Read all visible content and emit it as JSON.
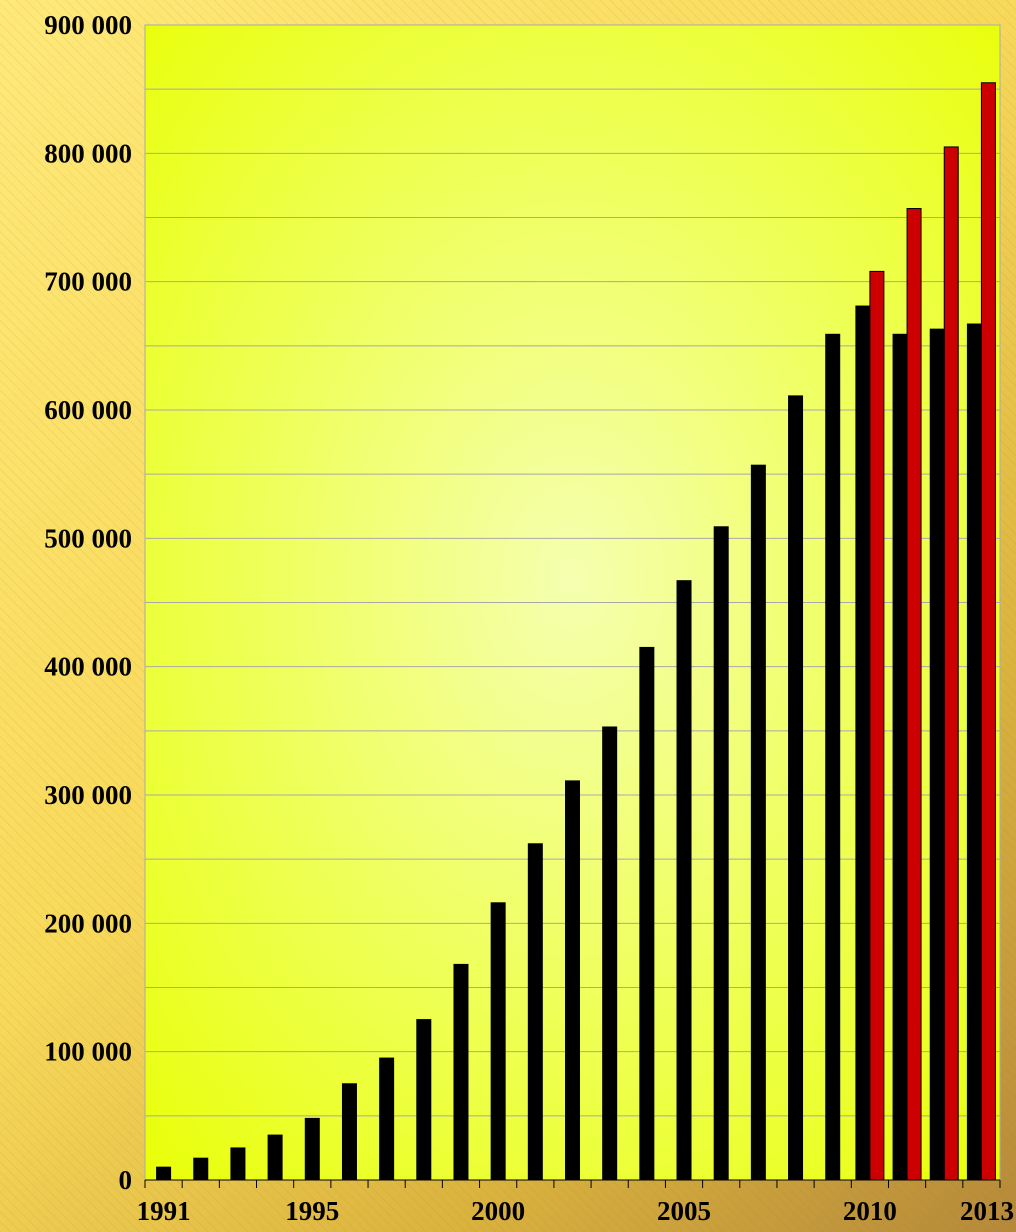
{
  "chart_data": {
    "type": "bar",
    "title": "",
    "xlabel": "",
    "ylabel": "",
    "categories": [
      "1991",
      "1992",
      "1993",
      "1994",
      "1995",
      "1996",
      "1997",
      "1998",
      "1999",
      "2000",
      "2001",
      "2002",
      "2003",
      "2004",
      "2005",
      "2006",
      "2007",
      "2008",
      "2009",
      "2010",
      "2011",
      "2012",
      "2013"
    ],
    "x_tick_labels": [
      "1991",
      "1995",
      "2000",
      "2005",
      "2010",
      "2013"
    ],
    "y_tick_labels": [
      "0",
      "100 000",
      "200 000",
      "300 000",
      "400 000",
      "500 000",
      "600 000",
      "700 000",
      "800 000",
      "900 000"
    ],
    "ylim": [
      0,
      900000
    ],
    "y_grid_step": 50000,
    "grid": true,
    "legend": "none",
    "series": [
      {
        "color": "#000000",
        "values": [
          10000,
          17000,
          25000,
          35000,
          48000,
          75000,
          95000,
          125000,
          168000,
          216000,
          262000,
          311000,
          353000,
          415000,
          467000,
          509000,
          557000,
          611000,
          659000,
          681000,
          659000,
          663000,
          667000
        ]
      },
      {
        "color": "#cc0000",
        "values": [
          null,
          null,
          null,
          null,
          null,
          null,
          null,
          null,
          null,
          null,
          null,
          null,
          null,
          null,
          null,
          null,
          null,
          null,
          null,
          708000,
          757000,
          805000,
          855000
        ]
      }
    ],
    "plot_background": [
      "#e8ff00",
      "#f5ffb0"
    ]
  }
}
